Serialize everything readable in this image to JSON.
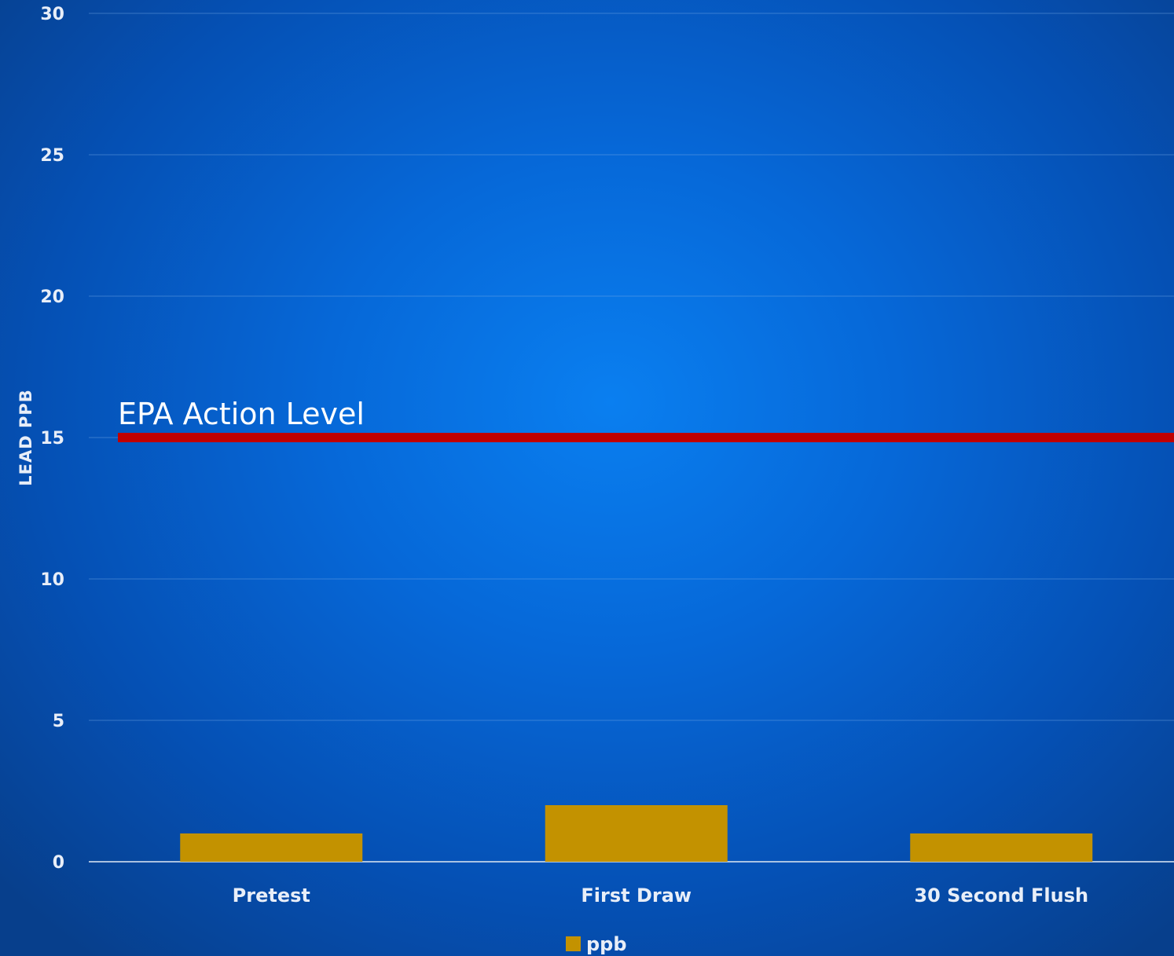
{
  "chart_data": {
    "type": "bar",
    "categories": [
      "Pretest",
      "First Draw",
      "30 Second Flush"
    ],
    "series": [
      {
        "name": "ppb",
        "values": [
          1,
          2,
          1
        ],
        "color": "#c39200"
      }
    ],
    "ylabel": "LEAD  PPB",
    "ylim": [
      0,
      30
    ],
    "yticks": [
      0,
      5,
      10,
      15,
      20,
      25,
      30
    ],
    "ytick_labels": [
      "0",
      "5",
      "10",
      "15",
      "20",
      "25",
      "30"
    ],
    "grid": true,
    "legend": "bottom-center",
    "reference_line": {
      "value": 15,
      "label": "EPA Action Level",
      "color": "#c00000"
    }
  }
}
